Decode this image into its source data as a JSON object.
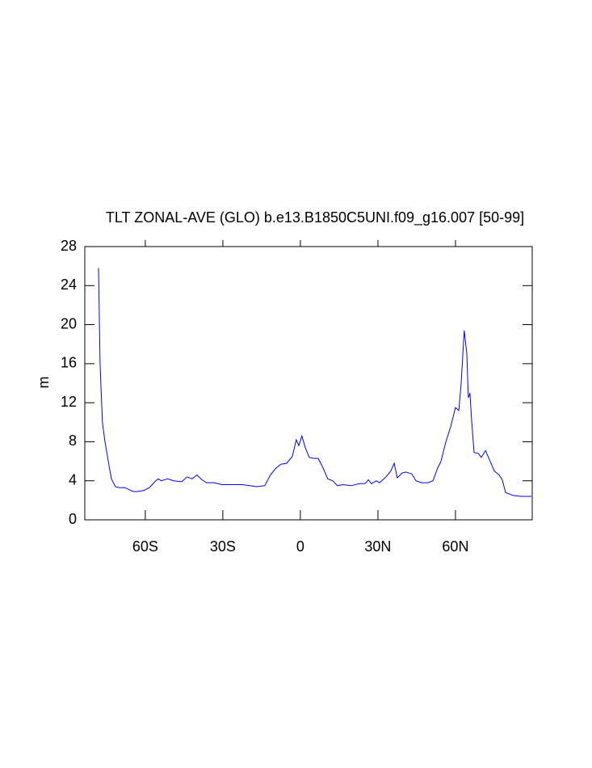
{
  "chart_data": {
    "type": "line",
    "title": "TLT ZONAL-AVE (GLO) b.e13.B1850C5UNI.f09_g16.007 [50-99]",
    "y_label": "m",
    "xlim": [
      -83.4,
      89.7
    ],
    "ylim": [
      0,
      28
    ],
    "xticks": [
      {
        "value": -60,
        "label": "60S"
      },
      {
        "value": -30,
        "label": "30S"
      },
      0,
      {
        "value": 30,
        "label": "30N"
      },
      {
        "value": 60,
        "label": "60N"
      }
    ],
    "yticks": [
      0,
      4,
      8,
      12,
      16,
      20,
      24,
      28
    ],
    "color": "#0000ff",
    "x": [
      -78.1,
      -77.5,
      -76.6,
      -75.6,
      -74,
      -73.1,
      -71.6,
      -70,
      -67.8,
      -66.3,
      -64.7,
      -63.1,
      -60.6,
      -58.4,
      -56.3,
      -55,
      -53.8,
      -51.3,
      -49.1,
      -45.9,
      -43.8,
      -41.9,
      -40,
      -38.1,
      -36.3,
      -33.4,
      -30.3,
      -25.6,
      -22.5,
      -19.4,
      -16.9,
      -13.8,
      -11.6,
      -9.4,
      -7.5,
      -5.3,
      -3.1,
      -1.6,
      -0.6,
      0.6,
      1.9,
      3.4,
      5,
      6.9,
      8.8,
      10.6,
      12.5,
      14.4,
      16.6,
      19.7,
      22.8,
      25,
      26.3,
      27.5,
      29.4,
      30.6,
      33.1,
      35,
      36.3,
      37.5,
      39.4,
      40.9,
      43.1,
      44.7,
      46.9,
      49.4,
      51.3,
      53.1,
      54.4,
      56.3,
      58.1,
      60,
      61.3,
      62.2,
      63.4,
      64.4,
      65,
      65.6,
      66.3,
      67.2,
      68.8,
      70,
      71.6,
      73.1,
      75,
      76.9,
      78.1,
      79.4,
      82.2,
      85.3,
      89.4
    ],
    "values": [
      25.8,
      16,
      10,
      8,
      5.5,
      4.2,
      3.4,
      3.3,
      3.3,
      3.1,
      2.9,
      2.9,
      3.0,
      3.3,
      3.9,
      4.2,
      4.0,
      4.2,
      4.0,
      3.9,
      4.4,
      4.2,
      4.6,
      4.1,
      3.8,
      3.8,
      3.6,
      3.6,
      3.6,
      3.5,
      3.4,
      3.5,
      4.6,
      5.3,
      5.7,
      5.8,
      6.5,
      8.2,
      7.6,
      8.6,
      7.4,
      6.4,
      6.3,
      6.3,
      5.3,
      4.2,
      4.0,
      3.5,
      3.6,
      3.5,
      3.7,
      3.7,
      4.1,
      3.7,
      4.0,
      3.8,
      4.4,
      5.0,
      5.8,
      4.3,
      4.8,
      4.9,
      4.7,
      4.0,
      3.8,
      3.8,
      4.0,
      5.3,
      6.0,
      8.0,
      9.5,
      11.5,
      11.2,
      14,
      19.4,
      17,
      12.5,
      13,
      10,
      6.9,
      6.8,
      6.4,
      7.1,
      6.2,
      5.0,
      4.6,
      4.1,
      2.8,
      2.5,
      2.4,
      2.4
    ]
  }
}
